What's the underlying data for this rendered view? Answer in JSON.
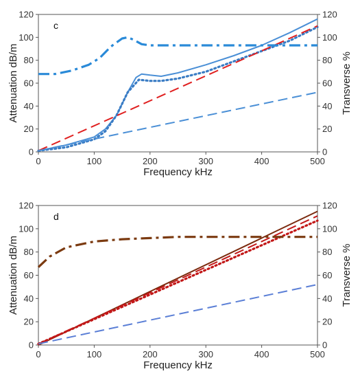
{
  "chart_data": [
    {
      "type": "line",
      "panel_label": "c",
      "xlabel": "Frequency  kHz",
      "ylabel": "Attenuation  dB/m",
      "y2label": "Transverse %",
      "xlim": [
        0,
        500
      ],
      "ylim": [
        0,
        120
      ],
      "y2lim": [
        0,
        120
      ],
      "xticks": [
        0,
        100,
        200,
        300,
        400,
        500
      ],
      "yticks": [
        0,
        20,
        40,
        60,
        80,
        100,
        120
      ],
      "y2ticks": [
        0,
        20,
        40,
        60,
        80,
        100,
        120
      ],
      "grid": false,
      "series": [
        {
          "style": "solid",
          "color": "#4a8fd6",
          "axis": "left",
          "x": [
            0,
            50,
            100,
            120,
            140,
            160,
            175,
            185,
            200,
            220,
            250,
            300,
            350,
            400,
            450,
            500
          ],
          "y": [
            1,
            6,
            13,
            20,
            32,
            52,
            65,
            68,
            67,
            66,
            69,
            76,
            84,
            93,
            104,
            116
          ]
        },
        {
          "style": "dotted",
          "color": "#3a7cc4",
          "axis": "left",
          "x": [
            0,
            50,
            100,
            120,
            140,
            160,
            180,
            200,
            220,
            250,
            300,
            350,
            400,
            450,
            500
          ],
          "y": [
            1,
            4,
            11,
            18,
            32,
            52,
            63,
            62,
            62,
            64,
            70,
            79,
            88,
            97,
            109
          ]
        },
        {
          "style": "dashed",
          "color": "#e02020",
          "axis": "left",
          "x": [
            0,
            500
          ],
          "y": [
            1,
            110
          ]
        },
        {
          "style": "dashed",
          "color": "#4a8fd6",
          "axis": "left",
          "x": [
            0,
            500
          ],
          "y": [
            1,
            52
          ]
        },
        {
          "style": "dashdot",
          "color": "#2a8ad8",
          "axis": "right",
          "x": [
            0,
            30,
            60,
            90,
            110,
            130,
            150,
            160,
            170,
            185,
            200,
            250,
            300,
            400,
            500
          ],
          "y": [
            68,
            68,
            71,
            76,
            82,
            92,
            99,
            100,
            98,
            94,
            93,
            93,
            93,
            93,
            93
          ]
        }
      ]
    },
    {
      "type": "line",
      "panel_label": "d",
      "xlabel": "Frequency  kHz",
      "ylabel": "Attenuation  dB/m",
      "y2label": "Transverse %",
      "xlim": [
        0,
        500
      ],
      "ylim": [
        0,
        120
      ],
      "y2lim": [
        0,
        120
      ],
      "xticks": [
        0,
        100,
        200,
        300,
        400,
        500
      ],
      "yticks": [
        0,
        20,
        40,
        60,
        80,
        100,
        120
      ],
      "y2ticks": [
        0,
        20,
        40,
        60,
        80,
        100,
        120
      ],
      "grid": false,
      "series": [
        {
          "style": "solid",
          "color": "#7b2a0e",
          "axis": "left",
          "x": [
            0,
            500
          ],
          "y": [
            0,
            115
          ]
        },
        {
          "style": "dashed",
          "color": "#c21818",
          "axis": "left",
          "x": [
            0,
            500
          ],
          "y": [
            1,
            111
          ]
        },
        {
          "style": "dotted",
          "color": "#c21818",
          "axis": "left",
          "x": [
            0,
            500
          ],
          "y": [
            1,
            107
          ]
        },
        {
          "style": "dashed",
          "color": "#5b7fd6",
          "axis": "left",
          "x": [
            0,
            500
          ],
          "y": [
            1,
            52
          ]
        },
        {
          "style": "dashdot",
          "color": "#7b3a10",
          "axis": "right",
          "x": [
            0,
            20,
            50,
            100,
            150,
            200,
            250,
            300,
            400,
            450,
            500
          ],
          "y": [
            67,
            76,
            84,
            89,
            91,
            92,
            93,
            93,
            93,
            93,
            93
          ]
        }
      ]
    }
  ]
}
